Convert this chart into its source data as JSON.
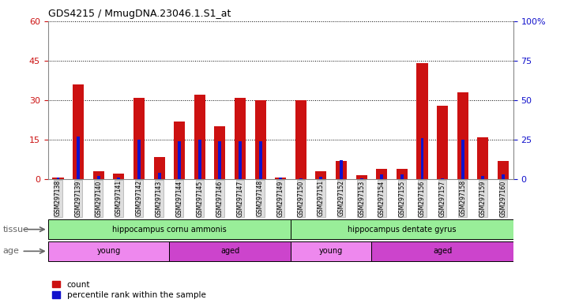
{
  "title": "GDS4215 / MmugDNA.23046.1.S1_at",
  "samples": [
    "GSM297138",
    "GSM297139",
    "GSM297140",
    "GSM297141",
    "GSM297142",
    "GSM297143",
    "GSM297144",
    "GSM297145",
    "GSM297146",
    "GSM297147",
    "GSM297148",
    "GSM297149",
    "GSM297150",
    "GSM297151",
    "GSM297152",
    "GSM297153",
    "GSM297154",
    "GSM297155",
    "GSM297156",
    "GSM297157",
    "GSM297158",
    "GSM297159",
    "GSM297160"
  ],
  "counts": [
    0.5,
    36,
    3,
    2,
    31,
    8.5,
    22,
    32,
    20,
    31,
    30,
    0.5,
    30,
    3,
    7,
    1.5,
    4,
    4,
    44,
    28,
    33,
    16,
    7
  ],
  "percentile": [
    1,
    27,
    2,
    1,
    25,
    4,
    24,
    25,
    24,
    24,
    24,
    1,
    0.5,
    1.5,
    12,
    0.5,
    3,
    3,
    26,
    0.5,
    25,
    2,
    3
  ],
  "ylim_left": [
    0,
    60
  ],
  "ylim_right": [
    0,
    100
  ],
  "yticks_left": [
    0,
    15,
    30,
    45,
    60
  ],
  "yticks_right": [
    0,
    25,
    50,
    75,
    100
  ],
  "bar_color": "#cc1111",
  "pct_color": "#1111cc",
  "bg_color": "#ffffff",
  "tissue_color": "#99ee99",
  "tissue_groups": [
    {
      "label": "hippocampus cornu ammonis",
      "start": 0,
      "end": 11
    },
    {
      "label": "hippocampus dentate gyrus",
      "start": 12,
      "end": 22
    }
  ],
  "age_groups": [
    {
      "label": "young",
      "start": 0,
      "end": 5,
      "color": "#ee88ee"
    },
    {
      "label": "aged",
      "start": 6,
      "end": 11,
      "color": "#cc44cc"
    },
    {
      "label": "young",
      "start": 12,
      "end": 15,
      "color": "#ee88ee"
    },
    {
      "label": "aged",
      "start": 16,
      "end": 22,
      "color": "#cc44cc"
    }
  ],
  "tissue_label": "tissue",
  "age_label": "age",
  "legend_count": "count",
  "legend_pct": "percentile rank within the sample"
}
